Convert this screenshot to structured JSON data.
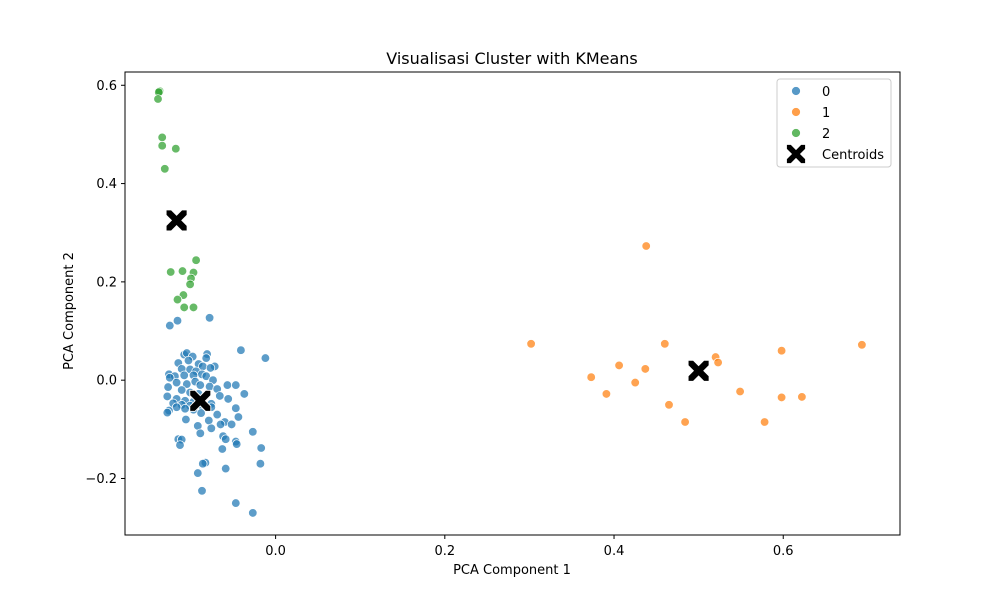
{
  "chart_data": {
    "type": "scatter",
    "title": "Visualisasi Cluster with KMeans",
    "xlabel": "PCA Component 1",
    "ylabel": "PCA Component 2",
    "xlim": [
      -0.178,
      0.738
    ],
    "ylim": [
      -0.315,
      0.627
    ],
    "xticks": [
      0.0,
      0.2,
      0.4,
      0.6
    ],
    "xtick_labels": [
      "0.0",
      "0.2",
      "0.4",
      "0.6"
    ],
    "yticks": [
      -0.2,
      0.0,
      0.2,
      0.4,
      0.6
    ],
    "ytick_labels": [
      "−0.2",
      "0.0",
      "0.2",
      "0.4",
      "0.6"
    ],
    "grid": false,
    "legend_position": "top-right",
    "series": [
      {
        "name": "0",
        "color": "#1f77b4",
        "points": [
          [
            -0.125,
            0.111
          ],
          [
            -0.116,
            0.121
          ],
          [
            -0.078,
            0.127
          ],
          [
            -0.041,
            0.061
          ],
          [
            -0.012,
            0.045
          ],
          [
            -0.081,
            0.053
          ],
          [
            -0.082,
            0.045
          ],
          [
            -0.108,
            0.052
          ],
          [
            -0.105,
            0.055
          ],
          [
            -0.098,
            0.048
          ],
          [
            -0.115,
            0.035
          ],
          [
            -0.103,
            0.04
          ],
          [
            -0.091,
            0.033
          ],
          [
            -0.086,
            0.028
          ],
          [
            -0.072,
            0.028
          ],
          [
            -0.077,
            0.025
          ],
          [
            -0.111,
            0.023
          ],
          [
            -0.101,
            0.022
          ],
          [
            -0.094,
            0.018
          ],
          [
            -0.126,
            0.012
          ],
          [
            -0.119,
            0.008
          ],
          [
            -0.108,
            0.01
          ],
          [
            -0.097,
            0.01
          ],
          [
            -0.087,
            0.012
          ],
          [
            -0.082,
            0.008
          ],
          [
            -0.125,
            0.005
          ],
          [
            -0.074,
            0.0
          ],
          [
            -0.117,
            -0.005
          ],
          [
            -0.105,
            -0.008
          ],
          [
            -0.095,
            -0.003
          ],
          [
            -0.089,
            -0.01
          ],
          [
            -0.078,
            -0.013
          ],
          [
            -0.069,
            -0.018
          ],
          [
            -0.057,
            -0.01
          ],
          [
            -0.047,
            -0.01
          ],
          [
            -0.127,
            -0.014
          ],
          [
            -0.111,
            -0.02
          ],
          [
            -0.101,
            -0.025
          ],
          [
            -0.091,
            -0.028
          ],
          [
            -0.083,
            -0.032
          ],
          [
            -0.066,
            -0.032
          ],
          [
            -0.056,
            -0.038
          ],
          [
            -0.037,
            -0.028
          ],
          [
            -0.128,
            -0.033
          ],
          [
            -0.117,
            -0.038
          ],
          [
            -0.107,
            -0.042
          ],
          [
            -0.097,
            -0.044
          ],
          [
            -0.076,
            -0.048
          ],
          [
            -0.121,
            -0.047
          ],
          [
            -0.111,
            -0.05
          ],
          [
            -0.101,
            -0.052
          ],
          [
            -0.087,
            -0.052
          ],
          [
            -0.076,
            -0.055
          ],
          [
            -0.117,
            -0.055
          ],
          [
            -0.107,
            -0.058
          ],
          [
            -0.097,
            -0.06
          ],
          [
            -0.047,
            -0.057
          ],
          [
            -0.126,
            -0.062
          ],
          [
            -0.088,
            -0.067
          ],
          [
            -0.069,
            -0.07
          ],
          [
            -0.128,
            -0.066
          ],
          [
            -0.106,
            -0.08
          ],
          [
            -0.079,
            -0.082
          ],
          [
            -0.06,
            -0.085
          ],
          [
            -0.044,
            -0.075
          ],
          [
            -0.065,
            -0.09
          ],
          [
            -0.052,
            -0.09
          ],
          [
            -0.092,
            -0.093
          ],
          [
            -0.076,
            -0.098
          ],
          [
            -0.027,
            -0.105
          ],
          [
            -0.089,
            -0.108
          ],
          [
            -0.062,
            -0.114
          ],
          [
            -0.059,
            -0.12
          ],
          [
            -0.047,
            -0.125
          ],
          [
            -0.046,
            -0.13
          ],
          [
            -0.115,
            -0.12
          ],
          [
            -0.111,
            -0.121
          ],
          [
            -0.113,
            -0.132
          ],
          [
            -0.063,
            -0.14
          ],
          [
            -0.017,
            -0.138
          ],
          [
            -0.083,
            -0.168
          ],
          [
            -0.086,
            -0.17
          ],
          [
            -0.018,
            -0.17
          ],
          [
            -0.059,
            -0.18
          ],
          [
            -0.092,
            -0.189
          ],
          [
            -0.087,
            -0.225
          ],
          [
            -0.047,
            -0.25
          ],
          [
            -0.027,
            -0.27
          ]
        ]
      },
      {
        "name": "1",
        "color": "#ff7f0e",
        "points": [
          [
            0.302,
            0.074
          ],
          [
            0.373,
            0.006
          ],
          [
            0.391,
            -0.028
          ],
          [
            0.406,
            0.03
          ],
          [
            0.425,
            -0.005
          ],
          [
            0.437,
            0.023
          ],
          [
            0.438,
            0.273
          ],
          [
            0.46,
            0.074
          ],
          [
            0.465,
            -0.05
          ],
          [
            0.484,
            -0.085
          ],
          [
            0.52,
            0.047
          ],
          [
            0.523,
            0.036
          ],
          [
            0.549,
            -0.023
          ],
          [
            0.578,
            -0.085
          ],
          [
            0.598,
            0.06
          ],
          [
            0.598,
            -0.035
          ],
          [
            0.622,
            -0.034
          ],
          [
            0.693,
            0.072
          ]
        ]
      },
      {
        "name": "2",
        "color": "#2ca02c",
        "points": [
          [
            -0.137,
            0.588
          ],
          [
            -0.138,
            0.586
          ],
          [
            -0.139,
            0.572
          ],
          [
            -0.134,
            0.494
          ],
          [
            -0.134,
            0.477
          ],
          [
            -0.118,
            0.471
          ],
          [
            -0.131,
            0.43
          ],
          [
            -0.094,
            0.244
          ],
          [
            -0.124,
            0.22
          ],
          [
            -0.11,
            0.222
          ],
          [
            -0.097,
            0.219
          ],
          [
            -0.1,
            0.207
          ],
          [
            -0.101,
            0.195
          ],
          [
            -0.109,
            0.173
          ],
          [
            -0.116,
            0.164
          ],
          [
            -0.108,
            0.148
          ],
          [
            -0.097,
            0.148
          ]
        ]
      }
    ],
    "centroids": {
      "name": "Centroids",
      "color": "#000000",
      "points": [
        [
          -0.117,
          0.325
        ],
        [
          -0.089,
          -0.042
        ],
        [
          0.5,
          0.019
        ]
      ]
    }
  }
}
